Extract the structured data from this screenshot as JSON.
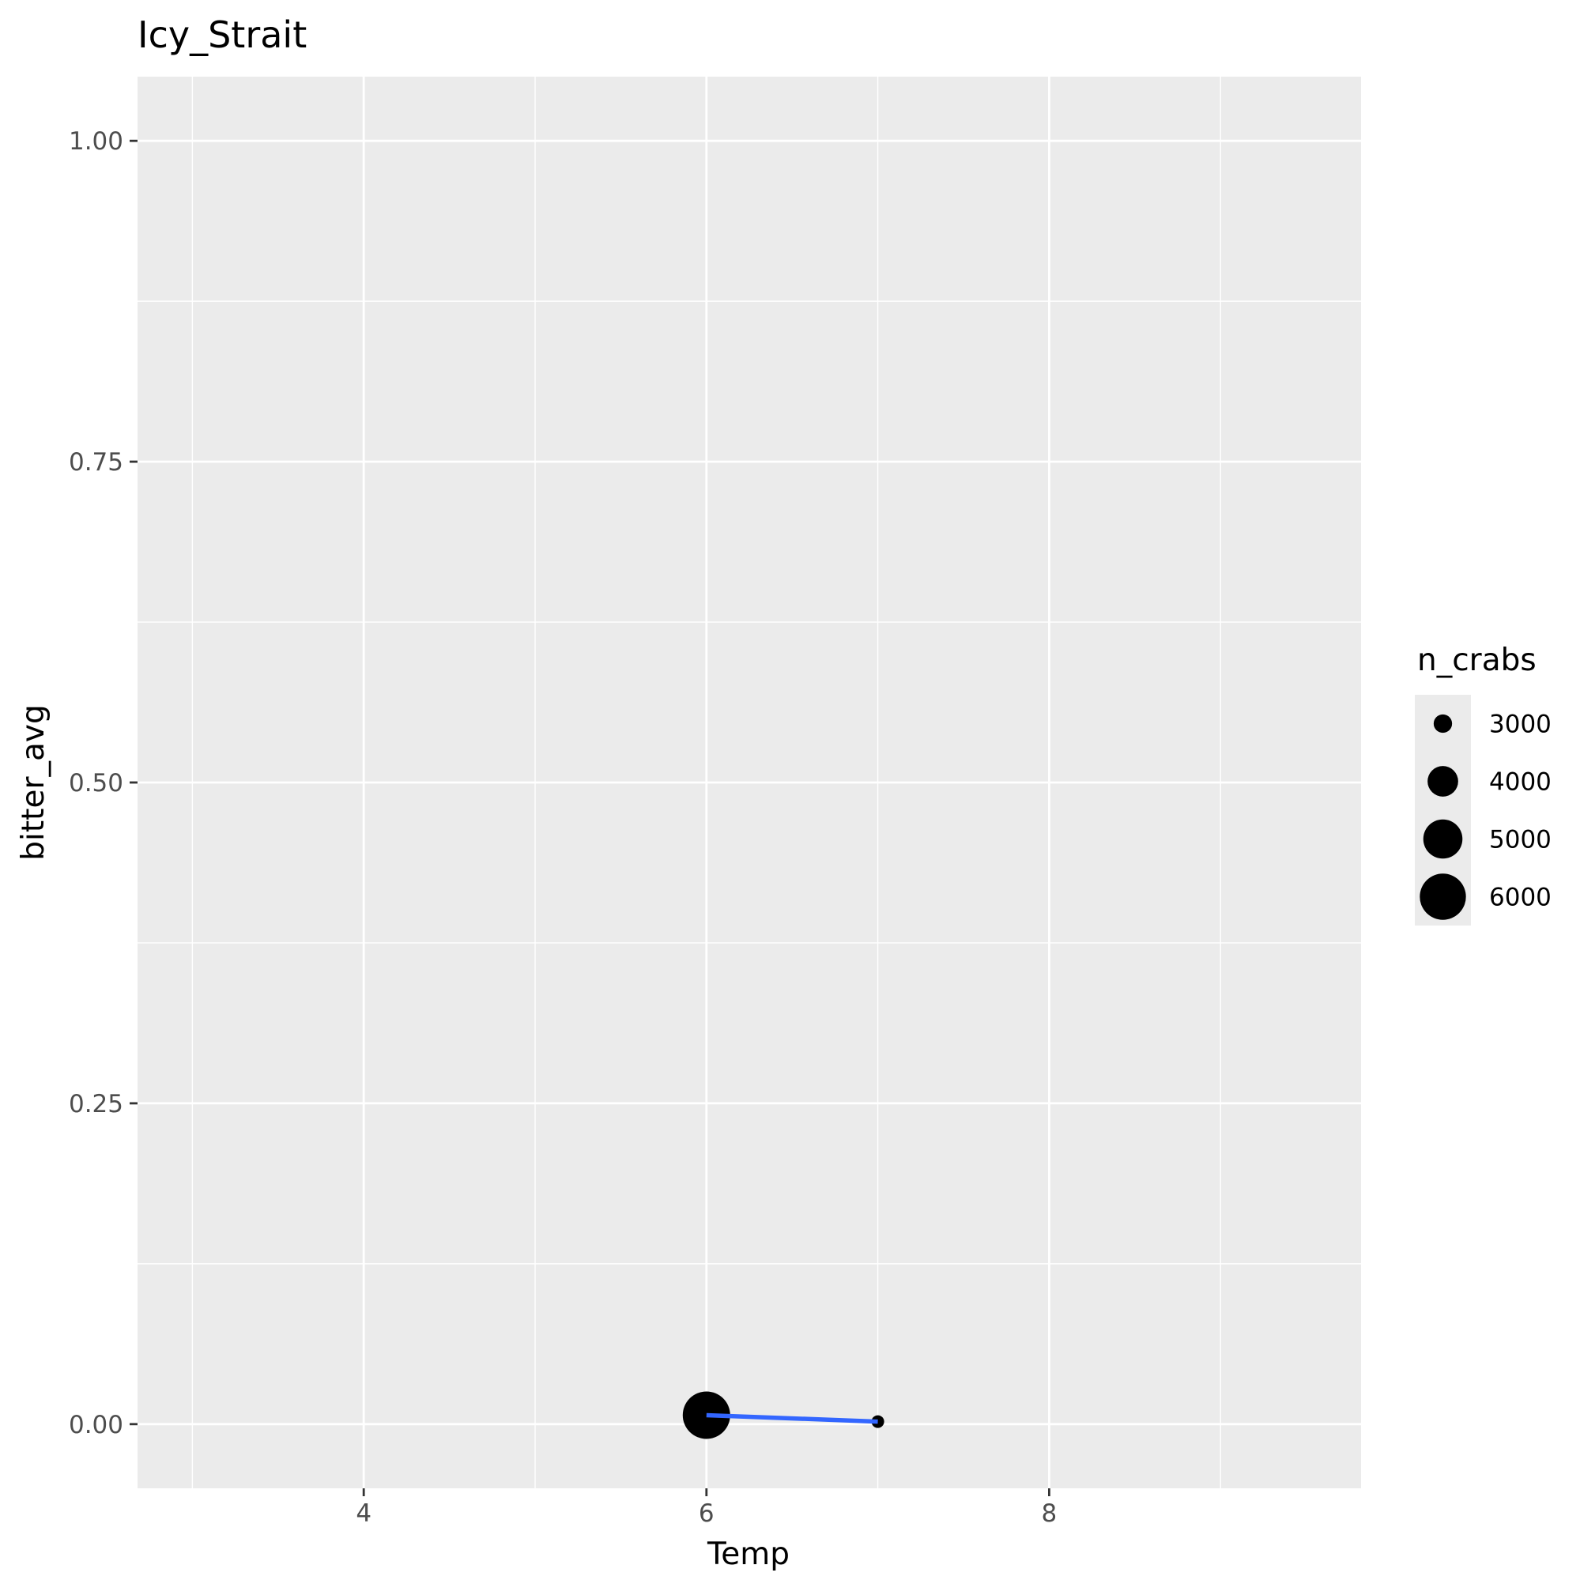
{
  "chart_data": {
    "type": "scatter",
    "title": "Icy_Strait",
    "xlabel": "Temp",
    "ylabel": "bitter_avg",
    "xlim": [
      2.68,
      9.82
    ],
    "ylim": [
      -0.05,
      1.05
    ],
    "x_ticks": [
      4,
      6,
      8
    ],
    "x_tick_labels": [
      "4",
      "6",
      "8"
    ],
    "x_minor": [
      3,
      5,
      7,
      9
    ],
    "y_ticks": [
      0,
      0.25,
      0.5,
      0.75,
      1
    ],
    "y_tick_labels": [
      "0.00",
      "0.25",
      "0.50",
      "0.75",
      "1.00"
    ],
    "y_minor": [
      0.125,
      0.375,
      0.625,
      0.875
    ],
    "grid": true,
    "colors": {
      "panel": "#ebebeb",
      "grid": "#ffffff",
      "point": "#000000",
      "line": "#3366ff"
    },
    "points": [
      {
        "x": 6,
        "y": 0.007,
        "n_crabs": 6200
      },
      {
        "x": 7,
        "y": 0.002,
        "n_crabs": 2700
      }
    ],
    "trend_line": {
      "x": [
        6,
        7
      ],
      "y": [
        0.007,
        0.002
      ]
    },
    "size_range": [
      2700,
      6200
    ],
    "legend": {
      "title": "n_crabs",
      "position": "right",
      "entries": [
        {
          "label": "3000",
          "value": 3000
        },
        {
          "label": "4000",
          "value": 4000
        },
        {
          "label": "5000",
          "value": 5000
        },
        {
          "label": "6000",
          "value": 6000
        }
      ]
    }
  }
}
